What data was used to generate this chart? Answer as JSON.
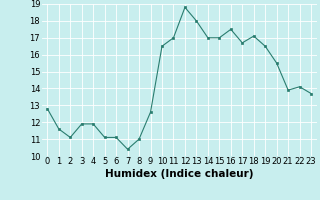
{
  "x": [
    0,
    1,
    2,
    3,
    4,
    5,
    6,
    7,
    8,
    9,
    10,
    11,
    12,
    13,
    14,
    15,
    16,
    17,
    18,
    19,
    20,
    21,
    22,
    23
  ],
  "y": [
    12.8,
    11.6,
    11.1,
    11.9,
    11.9,
    11.1,
    11.1,
    10.4,
    11.0,
    12.6,
    16.5,
    17.0,
    18.8,
    18.0,
    17.0,
    17.0,
    17.5,
    16.7,
    17.1,
    16.5,
    15.5,
    13.9,
    14.1,
    13.7
  ],
  "line_color": "#2a7d6f",
  "marker": "s",
  "marker_size": 2,
  "bg_color": "#c8eeee",
  "grid_color": "#ffffff",
  "xlabel": "Humidex (Indice chaleur)",
  "xlim": [
    -0.5,
    23.5
  ],
  "ylim": [
    10,
    19
  ],
  "yticks": [
    10,
    11,
    12,
    13,
    14,
    15,
    16,
    17,
    18,
    19
  ],
  "xticks": [
    0,
    1,
    2,
    3,
    4,
    5,
    6,
    7,
    8,
    9,
    10,
    11,
    12,
    13,
    14,
    15,
    16,
    17,
    18,
    19,
    20,
    21,
    22,
    23
  ],
  "xtick_labels": [
    "0",
    "1",
    "2",
    "3",
    "4",
    "5",
    "6",
    "7",
    "8",
    "9",
    "10",
    "11",
    "12",
    "13",
    "14",
    "15",
    "16",
    "17",
    "18",
    "19",
    "20",
    "21",
    "22",
    "23"
  ],
  "tick_fontsize": 6,
  "xlabel_fontsize": 7.5,
  "linewidth": 0.8
}
